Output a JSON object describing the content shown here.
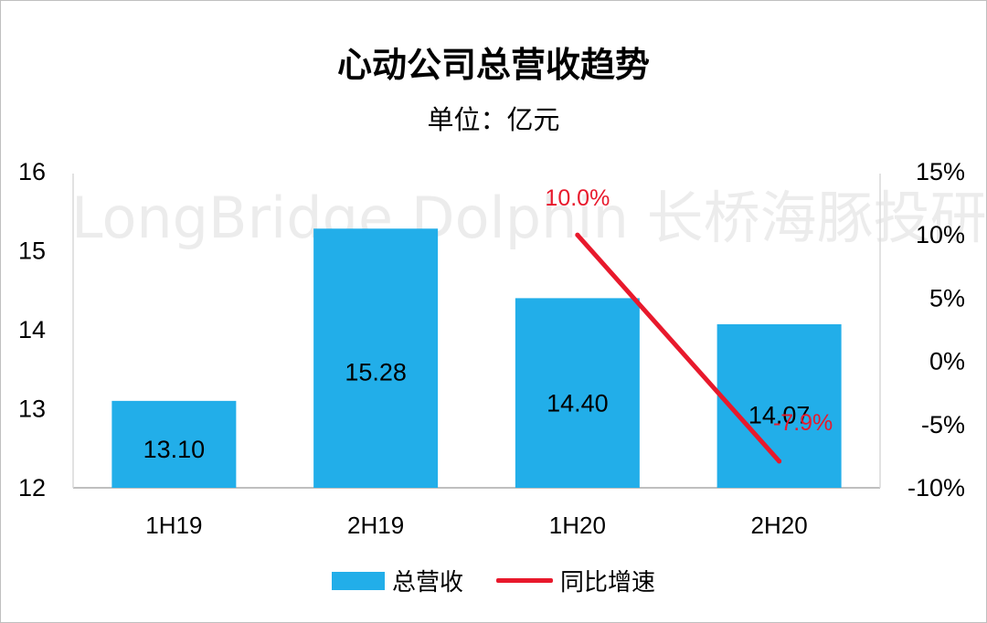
{
  "chart_data": {
    "type": "bar",
    "title": "心动公司总营收趋势",
    "subtitle": "单位：亿元",
    "categories": [
      "1H19",
      "2H19",
      "1H20",
      "2H20"
    ],
    "series": [
      {
        "name": "总营收",
        "type": "bar",
        "axis": "left",
        "values": [
          13.1,
          15.28,
          14.4,
          14.07
        ],
        "labels": [
          "13.10",
          "15.28",
          "14.40",
          "14.07"
        ],
        "color": "#22aee9"
      },
      {
        "name": "同比增速",
        "type": "line",
        "axis": "right",
        "values": [
          null,
          null,
          10.0,
          -7.9
        ],
        "labels": [
          "",
          "",
          "10.0%",
          "-7.9%"
        ],
        "color": "#e8192c"
      }
    ],
    "y_left": {
      "min": 12,
      "max": 16,
      "ticks": [
        "12",
        "13",
        "14",
        "15",
        "16"
      ]
    },
    "y_right": {
      "min": -10,
      "max": 15,
      "ticks": [
        "15%",
        "10%",
        "5%",
        "0%",
        "-5%",
        "-10%"
      ]
    },
    "legend_position": "bottom",
    "grid": false
  },
  "watermark": "LongBridge Dolphin 长桥海豚投研"
}
